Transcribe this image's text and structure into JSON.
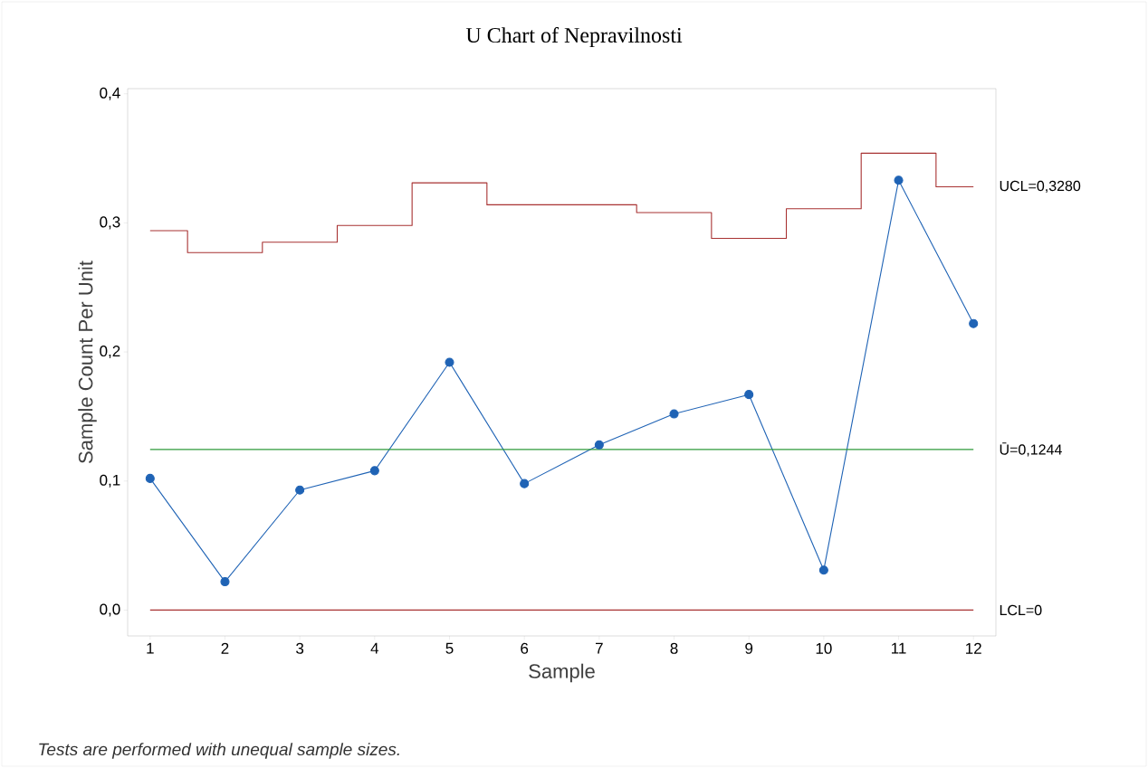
{
  "chart_data": {
    "type": "line",
    "title": "U Chart of Nepravilnosti",
    "xlabel": "Sample",
    "ylabel": "Sample Count Per Unit",
    "x": [
      1,
      2,
      3,
      4,
      5,
      6,
      7,
      8,
      9,
      10,
      11,
      12
    ],
    "series": [
      {
        "type": "step",
        "name": "UCL=0,3280",
        "color": "#a83232",
        "marker": "none",
        "values": [
          0.294,
          0.277,
          0.285,
          0.298,
          0.331,
          0.314,
          0.314,
          0.308,
          0.288,
          0.311,
          0.354,
          0.328
        ]
      },
      {
        "color": "#1f63b5",
        "marker": "circle",
        "values": [
          0.102,
          0.022,
          0.093,
          0.108,
          0.192,
          0.098,
          0.128,
          0.152,
          0.167,
          0.031,
          0.333,
          0.222
        ]
      }
    ],
    "ref_lines": [
      {
        "axis": "y",
        "value": 0.1244,
        "label": "Ū=0,1244",
        "color": "#2e9a3a"
      },
      {
        "axis": "y",
        "value": 0,
        "label": "LCL=0",
        "color": "#a83232"
      }
    ],
    "xlim": [
      0.7,
      12.3
    ],
    "ylim": [
      -0.02,
      0.404
    ],
    "xticks": [
      1,
      2,
      3,
      4,
      5,
      6,
      7,
      8,
      9,
      10,
      11,
      12
    ],
    "yticks": [
      {
        "value": 0,
        "label": "0,0"
      },
      {
        "value": 0.1,
        "label": "0,1"
      },
      {
        "value": 0.2,
        "label": "0,2"
      },
      {
        "value": 0.3,
        "label": "0,3"
      },
      {
        "value": 0.4,
        "label": "0,4"
      }
    ],
    "grid": false,
    "legend": false,
    "annotations": [
      "Tests are performed with unequal sample sizes."
    ]
  }
}
